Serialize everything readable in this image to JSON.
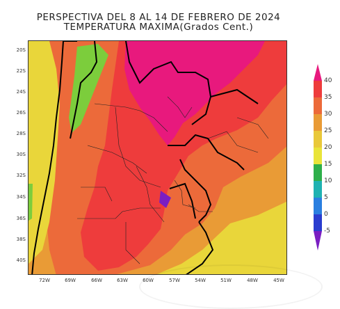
{
  "title": {
    "line1": "PERSPECTIVA DEL 8 AL 14 DE FEBRERO DE 2024",
    "line2": "TEMPERATURA MAXIMA(Grados Cent.)"
  },
  "axes": {
    "lat_labels": [
      "20S",
      "22S",
      "24S",
      "26S",
      "28S",
      "30S",
      "32S",
      "34S",
      "36S",
      "38S",
      "40S"
    ],
    "lon_labels": [
      "72W",
      "69W",
      "66W",
      "63W",
      "60W",
      "57W",
      "54W",
      "51W",
      "48W",
      "45W"
    ]
  },
  "colorbar": {
    "levels": [
      "40",
      "35",
      "30",
      "25",
      "20",
      "15",
      "10",
      "5",
      "0",
      "-5"
    ],
    "colors": [
      "#e8197d",
      "#ee3c3c",
      "#ec6a3a",
      "#e99b36",
      "#e9d63a",
      "#7ccd3c",
      "#2eaf4b",
      "#1fb2b2",
      "#2a7fe0",
      "#2a3dcf",
      "#7a1ec2"
    ]
  },
  "temperature_bands": {
    "ge_40": "#e8197d",
    "35_40": "#ee3c3c",
    "30_35": "#ec6a3a",
    "25_30": "#e99b36",
    "20_25": "#e9d63a",
    "15_20": "#7ccd3c",
    "10_15": "#2eaf4b"
  }
}
